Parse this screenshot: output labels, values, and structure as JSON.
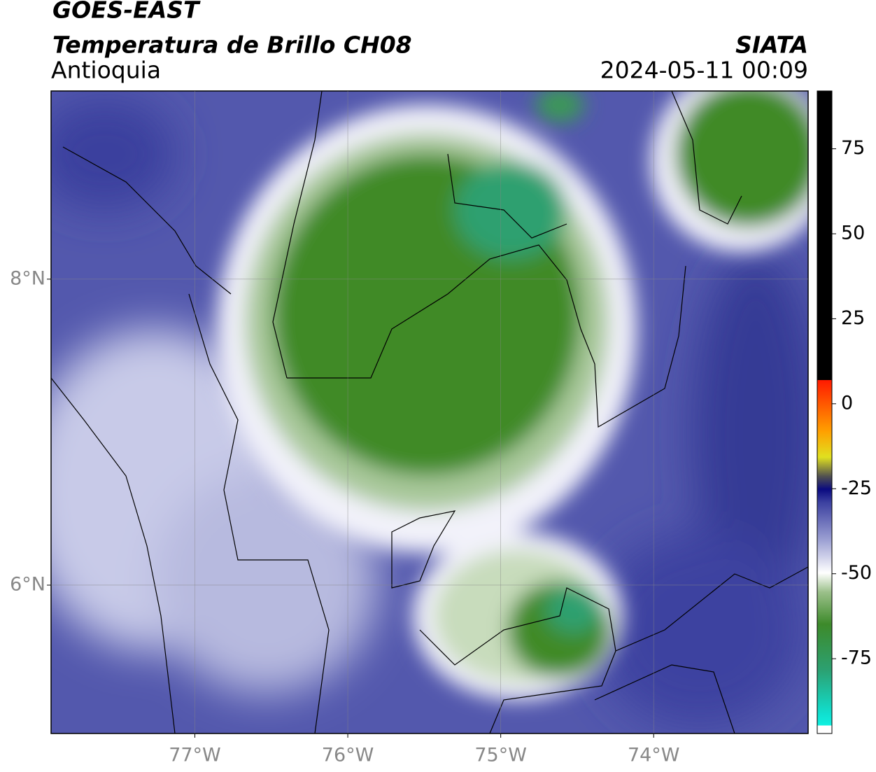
{
  "header": {
    "satellite": "GOES-EAST",
    "product": "Temperatura de Brillo CH08",
    "region": "Antioquia",
    "source": "SIATA",
    "timestamp": "2024-05-11 00:09"
  },
  "map": {
    "xlim": [
      -77.94,
      -72.99
    ],
    "ylim": [
      5.03,
      9.23
    ],
    "xticks": [
      {
        "value": -77,
        "label": "77°W"
      },
      {
        "value": -76,
        "label": "76°W"
      },
      {
        "value": -75,
        "label": "75°W"
      },
      {
        "value": -74,
        "label": "74°W"
      }
    ],
    "yticks": [
      {
        "value": 6,
        "label": "6°N"
      },
      {
        "value": 8,
        "label": "8°N"
      }
    ],
    "grid": true
  },
  "colorbar": {
    "clim": [
      -97,
      92
    ],
    "ticks": [
      75,
      50,
      25,
      0,
      -25,
      -50,
      -75
    ]
  }
}
